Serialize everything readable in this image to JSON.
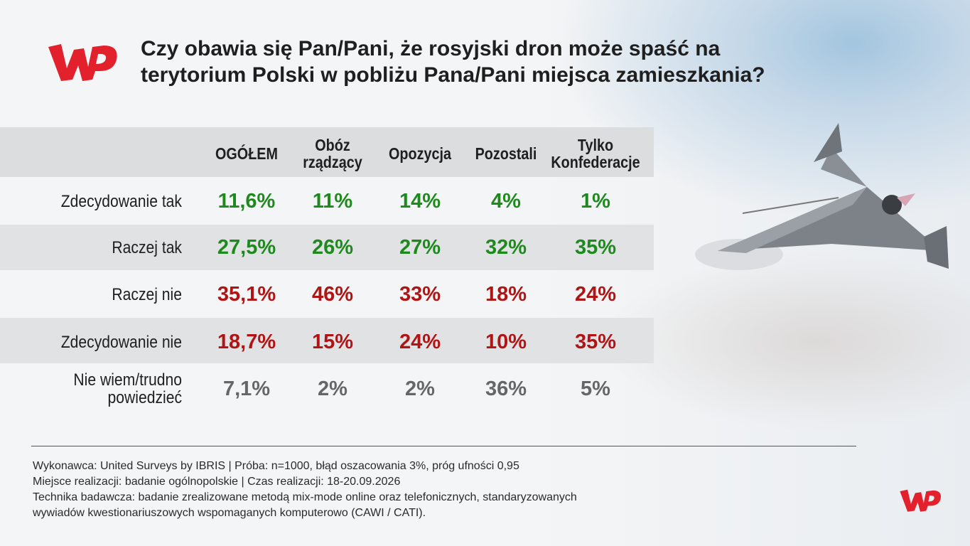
{
  "title": "Czy obawia się Pan/Pani, że rosyjski dron może spaść na terytorium Polski w pobliżu Pana/Pani miejsca zamieszkania?",
  "colors": {
    "positive": "#1e8a1e",
    "negative": "#b01414",
    "neutral": "#666666",
    "brand": "#e3212d"
  },
  "chart_data": {
    "type": "table",
    "columns": [
      "OGÓŁEM",
      "Obóz\nrządzący",
      "Opozycja",
      "Pozostali",
      "Tylko\nKonfederacje"
    ],
    "rows": [
      {
        "label": "Zdecydowanie tak",
        "values": [
          "11,6%",
          "11%",
          "14%",
          "4%",
          "1%"
        ],
        "tone": "positive"
      },
      {
        "label": "Raczej tak",
        "values": [
          "27,5%",
          "26%",
          "27%",
          "32%",
          "35%"
        ],
        "tone": "positive"
      },
      {
        "label": "Raczej nie",
        "values": [
          "35,1%",
          "46%",
          "33%",
          "18%",
          "24%"
        ],
        "tone": "negative"
      },
      {
        "label": "Zdecydowanie nie",
        "values": [
          "18,7%",
          "15%",
          "24%",
          "10%",
          "35%"
        ],
        "tone": "negative"
      },
      {
        "label": "Nie wiem/trudno\npowiedzieć",
        "values": [
          "7,1%",
          "2%",
          "2%",
          "36%",
          "5%"
        ],
        "tone": "neutral"
      }
    ]
  },
  "footnotes": [
    "Wykonawca: United Surveys by IBRIS | Próba: n=1000, błąd oszacowania 3%, próg ufności 0,95",
    "Miejsce realizacji: badanie ogólnopolskie | Czas realizacji: 18-20.09.2026",
    "Technika badawcza: badanie zrealizowane metodą mix-mode online oraz telefonicznych, standaryzowanych",
    "wywiadów kwestionariuszowych wspomaganych komputerowo (CAWI / CATI)."
  ]
}
